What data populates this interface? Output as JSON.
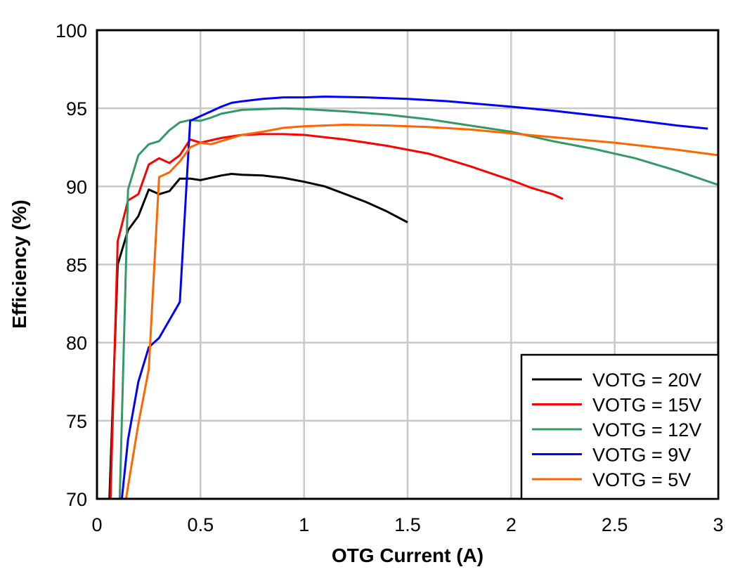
{
  "chart_data": {
    "type": "line",
    "title": "",
    "xlabel": "OTG Current (A)",
    "ylabel": "Efficiency (%)",
    "xlim": [
      0,
      3
    ],
    "ylim": [
      70,
      100
    ],
    "xticks": [
      0,
      0.5,
      1,
      1.5,
      2,
      2.5,
      3
    ],
    "xtick_labels": [
      "0",
      "0.5",
      "1",
      "1.5",
      "2",
      "2.5",
      "3"
    ],
    "yticks": [
      70,
      75,
      80,
      85,
      90,
      95,
      100
    ],
    "ytick_labels": [
      "70",
      "75",
      "80",
      "85",
      "90",
      "95",
      "100"
    ],
    "grid": true,
    "legend_position": "bottom-right",
    "series": [
      {
        "name": "VOTG = 20V",
        "color": "#000000",
        "x": [
          0.06,
          0.1,
          0.15,
          0.2,
          0.25,
          0.3,
          0.35,
          0.4,
          0.45,
          0.5,
          0.6,
          0.65,
          0.7,
          0.8,
          0.9,
          1.0,
          1.1,
          1.2,
          1.3,
          1.4,
          1.5
        ],
        "y": [
          70,
          85,
          87.2,
          88.1,
          89.8,
          89.5,
          89.7,
          90.5,
          90.5,
          90.4,
          90.7,
          90.8,
          90.75,
          90.7,
          90.55,
          90.3,
          90.0,
          89.5,
          89.0,
          88.4,
          87.7
        ]
      },
      {
        "name": "VOTG = 15V",
        "color": "#ff0000",
        "x": [
          0.065,
          0.1,
          0.15,
          0.2,
          0.25,
          0.3,
          0.35,
          0.4,
          0.45,
          0.5,
          0.6,
          0.7,
          0.8,
          0.9,
          1.0,
          1.2,
          1.4,
          1.6,
          1.8,
          2.0,
          2.1,
          2.2,
          2.25
        ],
        "y": [
          70,
          86.5,
          89.1,
          89.5,
          91.4,
          91.8,
          91.5,
          92.0,
          93.0,
          92.8,
          93.1,
          93.3,
          93.35,
          93.35,
          93.3,
          93.0,
          92.6,
          92.1,
          91.3,
          90.4,
          89.9,
          89.5,
          89.2
        ]
      },
      {
        "name": "VOTG = 12V",
        "color": "#339966",
        "x": [
          0.11,
          0.14,
          0.15,
          0.2,
          0.25,
          0.3,
          0.35,
          0.4,
          0.45,
          0.5,
          0.55,
          0.6,
          0.7,
          0.8,
          0.9,
          1.0,
          1.2,
          1.4,
          1.6,
          1.8,
          2.0,
          2.2,
          2.4,
          2.6,
          2.8,
          3.0
        ],
        "y": [
          70,
          85,
          89.8,
          92.0,
          92.7,
          92.9,
          93.6,
          94.1,
          94.25,
          94.2,
          94.4,
          94.65,
          94.9,
          94.95,
          95.0,
          94.95,
          94.8,
          94.6,
          94.3,
          93.9,
          93.5,
          92.9,
          92.4,
          91.8,
          91.0,
          90.1
        ]
      },
      {
        "name": "VOTG = 9V",
        "color": "#0000ff",
        "x": [
          0.12,
          0.15,
          0.2,
          0.25,
          0.3,
          0.4,
          0.45,
          0.5,
          0.55,
          0.6,
          0.65,
          0.7,
          0.8,
          0.9,
          1.0,
          1.1,
          1.3,
          1.5,
          1.7,
          2.0,
          2.2,
          2.5,
          2.8,
          2.95
        ],
        "y": [
          70,
          73.8,
          77.5,
          79.7,
          80.3,
          82.6,
          94.2,
          94.5,
          94.8,
          95.1,
          95.35,
          95.45,
          95.6,
          95.7,
          95.7,
          95.75,
          95.7,
          95.6,
          95.45,
          95.1,
          94.85,
          94.4,
          93.9,
          93.7
        ]
      },
      {
        "name": "VOTG = 5V",
        "color": "#ff6600",
        "x": [
          0.14,
          0.2,
          0.25,
          0.3,
          0.35,
          0.4,
          0.45,
          0.5,
          0.55,
          0.6,
          0.7,
          0.8,
          0.9,
          1.0,
          1.2,
          1.4,
          1.6,
          1.8,
          2.0,
          2.2,
          2.5,
          2.8,
          3.0
        ],
        "y": [
          70,
          74.8,
          78.3,
          90.6,
          90.9,
          91.6,
          92.5,
          92.8,
          92.7,
          92.9,
          93.3,
          93.5,
          93.75,
          93.85,
          93.95,
          93.9,
          93.8,
          93.65,
          93.4,
          93.15,
          92.8,
          92.35,
          92.0
        ]
      }
    ]
  }
}
